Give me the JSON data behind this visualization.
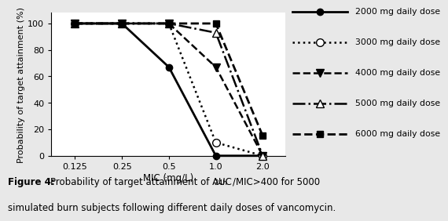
{
  "series": [
    {
      "label": "2000 mg daily dose",
      "x": [
        0.125,
        0.25,
        0.5,
        1.0,
        2.0
      ],
      "y": [
        100,
        100,
        67,
        0,
        0
      ],
      "linestyle": "-",
      "marker": "o",
      "mfc": "black",
      "mec": "black",
      "markersize": 6,
      "linewidth": 2.0,
      "color": "black"
    },
    {
      "label": "3000 mg daily dose",
      "x": [
        0.125,
        0.25,
        0.5,
        1.0,
        2.0
      ],
      "y": [
        100,
        100,
        100,
        10,
        0
      ],
      "linestyle": ":",
      "marker": "o",
      "mfc": "white",
      "mec": "black",
      "markersize": 7,
      "linewidth": 1.8,
      "color": "black"
    },
    {
      "label": "4000 mg daily dose",
      "x": [
        0.125,
        0.25,
        0.5,
        1.0,
        2.0
      ],
      "y": [
        100,
        100,
        100,
        67,
        0
      ],
      "linestyle": "--",
      "marker": "v",
      "mfc": "black",
      "mec": "black",
      "markersize": 7,
      "linewidth": 1.8,
      "color": "black"
    },
    {
      "label": "5000 mg daily dose",
      "x": [
        0.125,
        0.25,
        0.5,
        1.0,
        2.0
      ],
      "y": [
        100,
        100,
        100,
        93,
        0
      ],
      "linestyle": "-.",
      "marker": "^",
      "mfc": "white",
      "mec": "black",
      "markersize": 7,
      "linewidth": 1.8,
      "color": "black"
    },
    {
      "label": "6000 mg daily dose",
      "x": [
        0.125,
        0.25,
        0.5,
        1.0,
        2.0
      ],
      "y": [
        100,
        100,
        100,
        100,
        15
      ],
      "linestyle": "--",
      "marker": "s",
      "mfc": "black",
      "mec": "black",
      "markersize": 6,
      "linewidth": 2.0,
      "color": "black"
    }
  ],
  "xlabel": "MIC (mg/L)",
  "ylabel": "Probability of target attainment (%)",
  "xtick_labels": [
    "0.125",
    "0.25",
    "0.5",
    "1.0",
    "2.0"
  ],
  "xtick_positions": [
    0.125,
    0.25,
    0.5,
    1.0,
    2.0
  ],
  "ylim": [
    0,
    108
  ],
  "yticks": [
    0,
    20,
    40,
    60,
    80,
    100
  ],
  "background_color": "#e8e8e8",
  "plot_bg": "white",
  "legend_entries": [
    {
      "linestyle": "-",
      "marker": "o",
      "mfc": "black",
      "lw": 2.0,
      "ms": 6,
      "label": "2000 mg daily dose"
    },
    {
      "linestyle": ":",
      "marker": "o",
      "mfc": "white",
      "lw": 1.8,
      "ms": 7,
      "label": "3000 mg daily dose"
    },
    {
      "linestyle": "--",
      "marker": "v",
      "mfc": "black",
      "lw": 1.8,
      "ms": 7,
      "label": "4000 mg daily dose"
    },
    {
      "linestyle": "-.",
      "marker": "^",
      "mfc": "white",
      "lw": 1.8,
      "ms": 7,
      "label": "5000 mg daily dose"
    },
    {
      "linestyle": "--",
      "marker": "s",
      "mfc": "black",
      "lw": 2.0,
      "ms": 6,
      "label": "6000 mg daily dose"
    }
  ]
}
